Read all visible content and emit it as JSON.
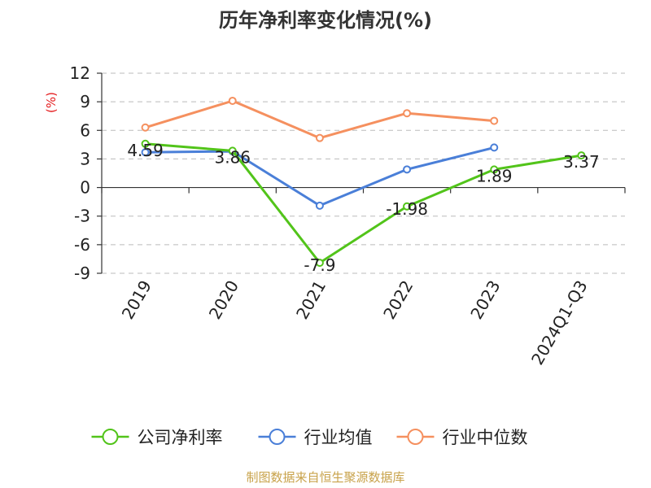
{
  "chart_data": {
    "type": "line",
    "title": "历年净利率变化情况(%)",
    "ylabel": "(%)",
    "xlabel": "",
    "categories": [
      "2019",
      "2020",
      "2021",
      "2022",
      "2023",
      "2024Q1-Q3"
    ],
    "ylim": [
      -9,
      12
    ],
    "yticks": [
      12,
      9,
      6,
      3,
      0,
      -3,
      -6,
      -9
    ],
    "ytick_labels": [
      "12",
      "9",
      "6",
      "3",
      "0",
      "-3",
      "-6",
      "-9"
    ],
    "grid": true,
    "legend_position": "bottom",
    "series": [
      {
        "name": "公司净利率",
        "color": "#52c41a",
        "values": [
          4.59,
          3.86,
          -7.9,
          -1.98,
          1.89,
          3.37
        ],
        "labels": [
          "4.59",
          "3.86",
          "-7.9",
          "-1.98",
          "1.89",
          "3.37"
        ]
      },
      {
        "name": "行业均值",
        "color": "#4a7fd8",
        "values": [
          3.7,
          3.8,
          -1.9,
          1.9,
          4.2,
          null
        ]
      },
      {
        "name": "行业中位数",
        "color": "#f5905f",
        "values": [
          6.3,
          9.1,
          5.2,
          7.8,
          7.0,
          null
        ]
      }
    ]
  },
  "source": "制图数据来自恒生聚源数据库"
}
